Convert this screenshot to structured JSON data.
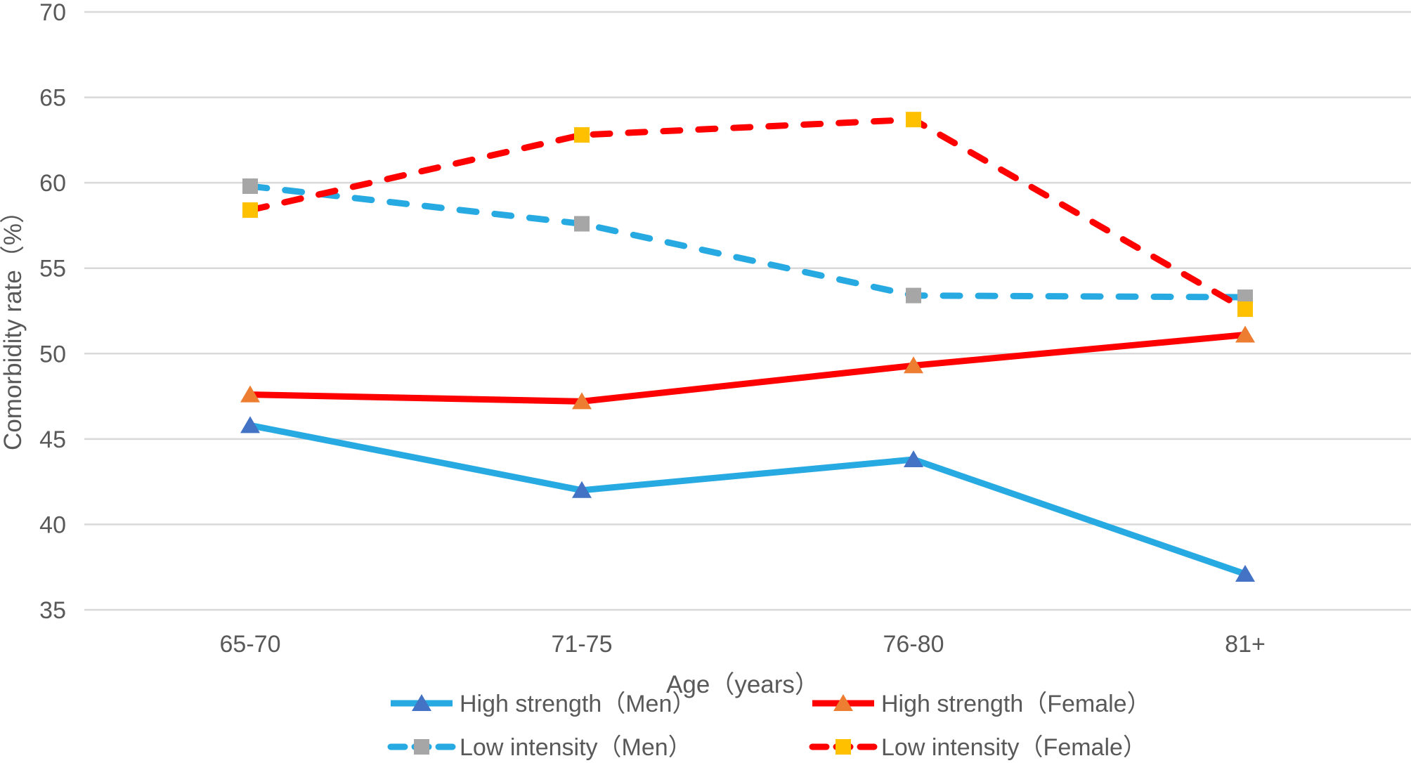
{
  "chart_data": {
    "type": "line",
    "title": "",
    "xlabel": "Age（years）",
    "ylabel": "Comorbidity rate（%）",
    "categories": [
      "65-70",
      "71-75",
      "76-80",
      "81+"
    ],
    "yticks": [
      35,
      40,
      45,
      50,
      55,
      60,
      65,
      70
    ],
    "ylim": [
      35,
      70
    ],
    "grid": true,
    "legend_position": "bottom",
    "colors": {
      "axis_text": "#595959",
      "gridline": "#D9D9D9",
      "blue_line": "#27AAE1",
      "red_line": "#FF0000",
      "triangle_blue": "#4472C4",
      "triangle_orange": "#ED7D31",
      "square_gray": "#A6A6A6",
      "square_yellow": "#FFC000"
    },
    "series": [
      {
        "name": "High strength（Men）",
        "values": [
          45.8,
          42.0,
          43.8,
          37.1
        ],
        "line_color": "#27AAE1",
        "line_style": "solid",
        "marker": "triangle",
        "marker_color": "#4472C4"
      },
      {
        "name": "High strength（Female）",
        "values": [
          47.6,
          47.2,
          49.3,
          51.1
        ],
        "line_color": "#FF0000",
        "line_style": "solid",
        "marker": "triangle",
        "marker_color": "#ED7D31"
      },
      {
        "name": "Low intensity（Men）",
        "values": [
          59.8,
          57.6,
          53.4,
          53.3
        ],
        "line_color": "#27AAE1",
        "line_style": "dashed",
        "marker": "square",
        "marker_color": "#A6A6A6"
      },
      {
        "name": "Low intensity（Female）",
        "values": [
          58.4,
          62.8,
          63.7,
          52.6
        ],
        "line_color": "#FF0000",
        "line_style": "dashed",
        "marker": "square",
        "marker_color": "#FFC000"
      }
    ]
  }
}
